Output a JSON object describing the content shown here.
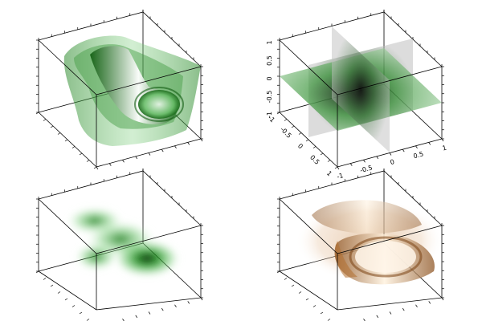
{
  "chart_data": [
    {
      "panel": "top-left",
      "type": "surface-3d",
      "variant": "transparent-isosurfaces",
      "colormap": "green-to-white",
      "accent_color": "#1a9a1a",
      "tick_labels_visible": false
    },
    {
      "panel": "top-right",
      "type": "surface-3d",
      "variant": "density-slices",
      "colormap": "green-to-black",
      "accent_color": "#2e9a2e",
      "xlim": [
        -1,
        1
      ],
      "ylim": [
        -1,
        1
      ],
      "zlim": [
        -1,
        1
      ],
      "x_ticks": [
        "-1",
        "-0.5",
        "0",
        "0.5",
        "1"
      ],
      "y_ticks": [
        "-1",
        "-0.5",
        "0",
        "0.5",
        "1"
      ],
      "z_ticks": [
        "-1",
        "-0.5",
        "0",
        "0.5",
        "1"
      ]
    },
    {
      "panel": "bottom-left",
      "type": "surface-3d",
      "variant": "volume-cloud",
      "colormap": "green-to-black",
      "accent_color": "#19a019",
      "tick_labels_visible": false
    },
    {
      "panel": "bottom-right",
      "type": "surface-3d",
      "variant": "copper-isosurfaces",
      "colormap": "copper",
      "accent_color": "#c07a35",
      "tick_labels_visible": false
    }
  ]
}
